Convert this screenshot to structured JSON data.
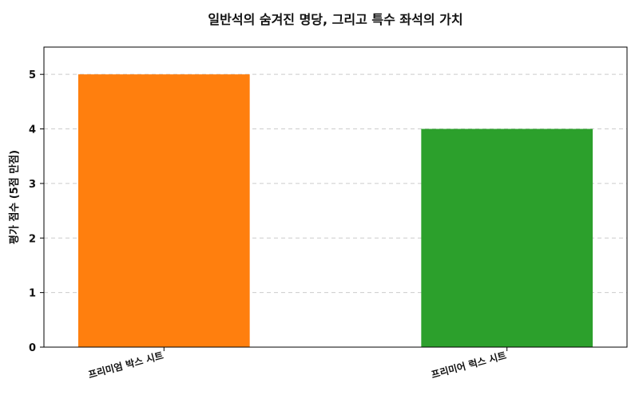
{
  "chart_data": {
    "type": "bar",
    "title": "일반석의 숨겨진 명당, 그리고 특수 좌석의 가치",
    "xlabel": "",
    "ylabel": "평가 점수 (5점 만점)",
    "categories": [
      "프리미엄 박스 시트",
      "프리미어 럭스 시트"
    ],
    "values": [
      5,
      4
    ],
    "colors": [
      "#ff7f0e",
      "#2ca02c"
    ],
    "ylim": [
      0,
      5.5
    ],
    "yticks": [
      0,
      1,
      2,
      3,
      4,
      5
    ],
    "grid": true,
    "grid_axis": "y",
    "legend": false
  }
}
